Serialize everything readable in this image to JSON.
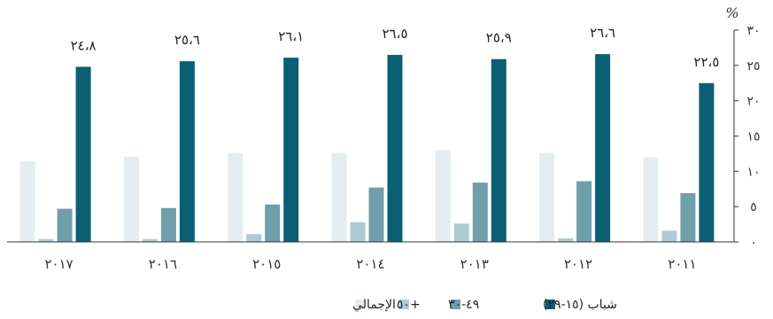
{
  "chart_data": {
    "type": "bar",
    "direction": "rtl",
    "categories": [
      "٢٠١١",
      "٢٠١٢",
      "٢٠١٣",
      "٢٠١٤",
      "٢٠١٥",
      "٢٠١٦",
      "٢٠١٧"
    ],
    "series": [
      {
        "name": "الإجمالي",
        "color": "#e4eef1",
        "values": [
          12.0,
          12.6,
          13.0,
          12.6,
          12.6,
          12.1,
          11.4
        ]
      },
      {
        "name": "+٥٠",
        "color": "#afcbd2",
        "values": [
          1.6,
          0.5,
          2.6,
          2.8,
          1.1,
          0.4,
          0.4
        ]
      },
      {
        "name": "٤٩-٣٠",
        "color": "#6e9fab",
        "values": [
          6.9,
          8.6,
          8.4,
          7.7,
          5.3,
          4.8,
          4.7
        ]
      },
      {
        "name": "شباب (١٥-٢٩)",
        "color": "#0b5f72",
        "values": [
          22.5,
          26.6,
          25.9,
          26.5,
          26.1,
          25.6,
          24.8
        ]
      }
    ],
    "value_labels": [
      "٢٢،٥",
      "٢٦،٦",
      "٢٥،٩",
      "٢٦،٥",
      "٢٦،١",
      "٢٥،٦",
      "٢٤،٨"
    ],
    "ylim": [
      0,
      30
    ],
    "yticks": [
      0,
      5,
      10,
      15,
      20,
      25,
      30
    ],
    "ytick_labels": [
      "٠",
      "٥",
      "١٠",
      "١٥",
      "٢٠",
      "٢٥",
      "٣٠"
    ],
    "y_axis_side": "right",
    "y_unit": "%",
    "grid": false,
    "legend_position": "bottom"
  }
}
